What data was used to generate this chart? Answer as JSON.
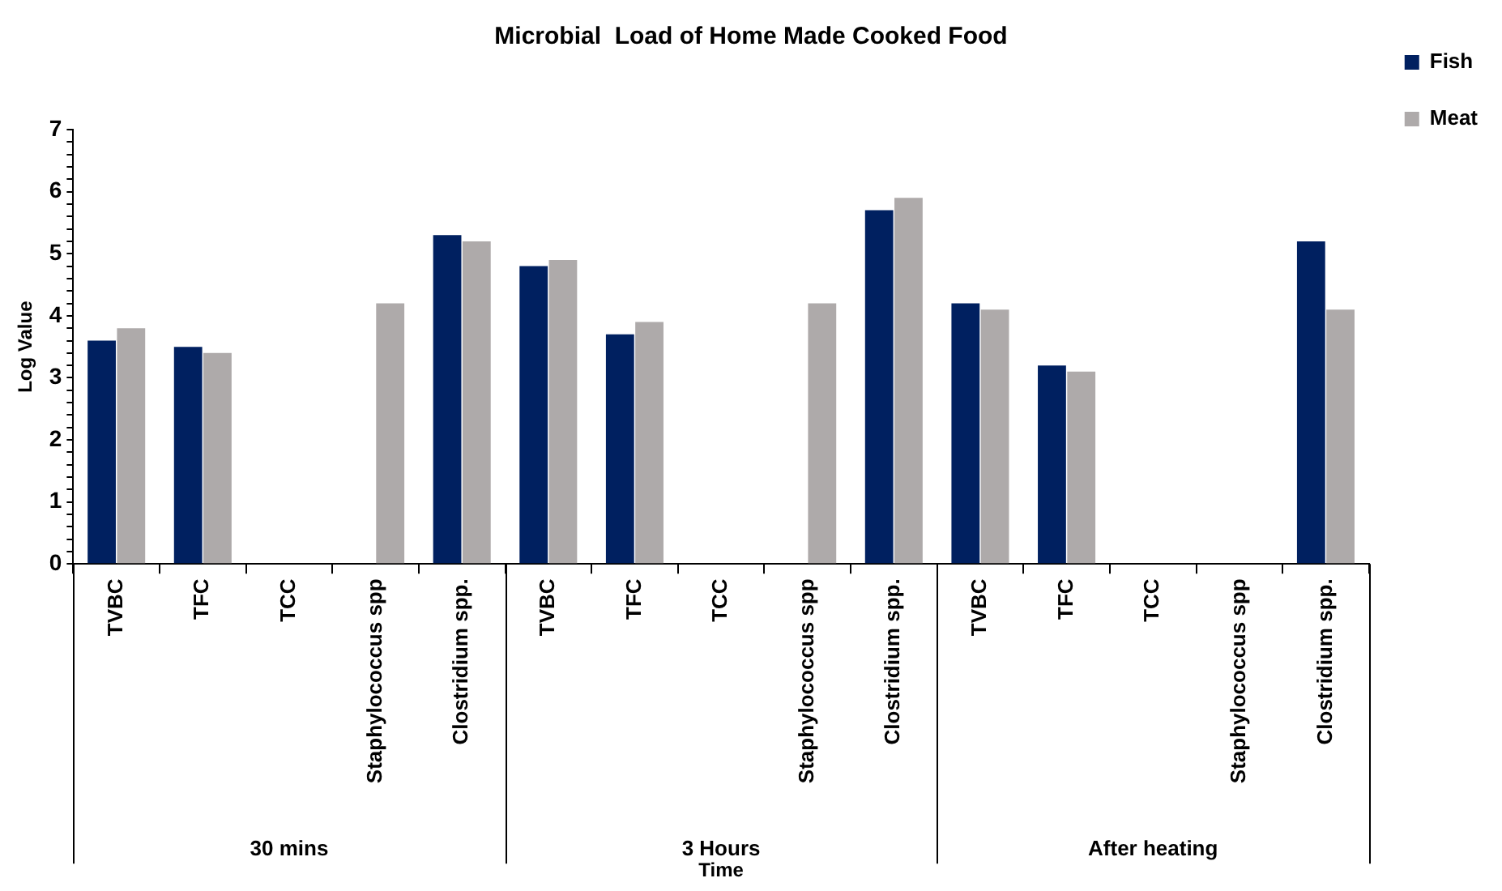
{
  "chart_data": {
    "type": "bar",
    "title": "Microbial  Load of Home Made Cooked Food",
    "xlabel": "Time",
    "ylabel": "Log Value",
    "categories": [
      "TVBC",
      "TFC",
      "TCC",
      "Staphylococcus spp",
      "Clostridium spp.",
      "TVBC",
      "TFC",
      "TCC",
      "Staphylococcus spp",
      "Clostridium spp.",
      "TVBC",
      "TFC",
      "TCC",
      "Staphylococcus spp",
      "Clostridium spp."
    ],
    "series": [
      {
        "name": "Fish",
        "color": "#002060",
        "values": [
          3.6,
          3.5,
          0,
          0,
          5.3,
          4.8,
          3.7,
          0,
          0,
          5.7,
          4.2,
          3.2,
          0,
          0,
          5.2
        ]
      },
      {
        "name": "Meat",
        "color": "#aeaaaa",
        "values": [
          3.8,
          3.4,
          0,
          4.2,
          5.2,
          4.9,
          3.9,
          0,
          4.2,
          5.9,
          4.1,
          3.1,
          0,
          0,
          4.1
        ]
      }
    ],
    "annotations": [
      "30 mins",
      "3 Hours",
      "After heating"
    ],
    "ylim": [
      0,
      7
    ],
    "yticks": [
      0,
      {
        "value": 0.2,
        "label": null
      },
      {
        "value": 0.4,
        "label": null
      },
      {
        "value": 0.6,
        "label": null
      },
      {
        "value": 0.8,
        "label": null
      },
      1,
      {
        "value": 1.2,
        "label": null
      },
      {
        "value": 1.4,
        "label": null
      },
      {
        "value": 1.6,
        "label": null
      },
      {
        "value": 1.8,
        "label": null
      },
      2,
      {
        "value": 2.2,
        "label": null
      },
      {
        "value": 2.4,
        "label": null
      },
      {
        "value": 2.6,
        "label": null
      },
      {
        "value": 2.8,
        "label": null
      },
      3,
      {
        "value": 3.2,
        "label": null
      },
      {
        "value": 3.4,
        "label": null
      },
      {
        "value": 3.6,
        "label": null
      },
      {
        "value": 3.8,
        "label": null
      },
      4,
      {
        "value": 4.2,
        "label": null
      },
      {
        "value": 4.4,
        "label": null
      },
      {
        "value": 4.6,
        "label": null
      },
      {
        "value": 4.8,
        "label": null
      },
      5,
      {
        "value": 5.2,
        "label": null
      },
      {
        "value": 5.4,
        "label": null
      },
      {
        "value": 5.6,
        "label": null
      },
      {
        "value": 5.8,
        "label": null
      },
      6,
      {
        "value": 6.2,
        "label": null
      },
      {
        "value": 6.4,
        "label": null
      },
      {
        "value": 6.6,
        "label": null
      },
      {
        "value": 6.8,
        "label": null
      },
      7
    ],
    "grid": false,
    "legend": "top right"
  }
}
